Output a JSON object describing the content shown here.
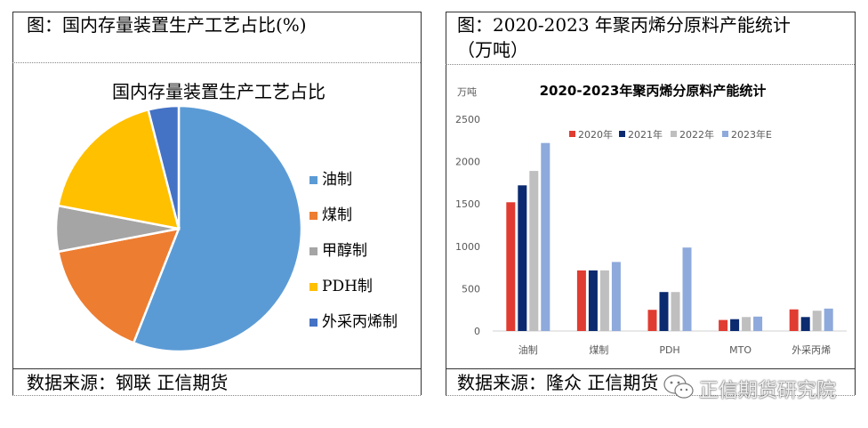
{
  "left": {
    "caption": "图：国内存量装置生产工艺占比(%)",
    "source": "数据来源：钢联     正信期货"
  },
  "right": {
    "caption_line1": "图：2020-2023 年聚丙烯分原料产能统计",
    "caption_line2": "（万吨）",
    "source": "数据来源：隆众     正信期货"
  },
  "watermark": {
    "text": "正信期货研究院",
    "icon": "wechat-icon"
  },
  "chart_data": [
    {
      "type": "pie",
      "title": "国内存量装置生产工艺占比",
      "categories": [
        "油制",
        "煤制",
        "甲醇制",
        "PDH制",
        "外采丙烯制"
      ],
      "values": [
        56,
        16,
        6,
        18,
        4
      ],
      "colors": [
        "#5B9BD5",
        "#ED7D31",
        "#A5A5A5",
        "#FFC000",
        "#4472C4"
      ],
      "start_angle_deg": 0,
      "legend": "right"
    },
    {
      "type": "bar",
      "title": "2020-2023年聚丙烯分原料产能统计",
      "unit": "万吨",
      "categories": [
        "油制",
        "煤制",
        "PDH",
        "MTO",
        "外采丙烯"
      ],
      "series": [
        {
          "name": "2020年",
          "color": "#E03C31",
          "values": [
            1520,
            715,
            250,
            130,
            255
          ]
        },
        {
          "name": "2021年",
          "color": "#0B2A6F",
          "values": [
            1720,
            715,
            460,
            140,
            165
          ]
        },
        {
          "name": "2022年",
          "color": "#BFBFBF",
          "values": [
            1890,
            715,
            460,
            165,
            240
          ]
        },
        {
          "name": "2023年E",
          "color": "#8EA9DB",
          "values": [
            2220,
            815,
            985,
            170,
            265
          ]
        }
      ],
      "y_ticks": [
        0,
        500,
        1000,
        1500,
        2000,
        2500
      ],
      "ylim": [
        0,
        2500
      ],
      "legend": "top",
      "grid": false
    }
  ]
}
